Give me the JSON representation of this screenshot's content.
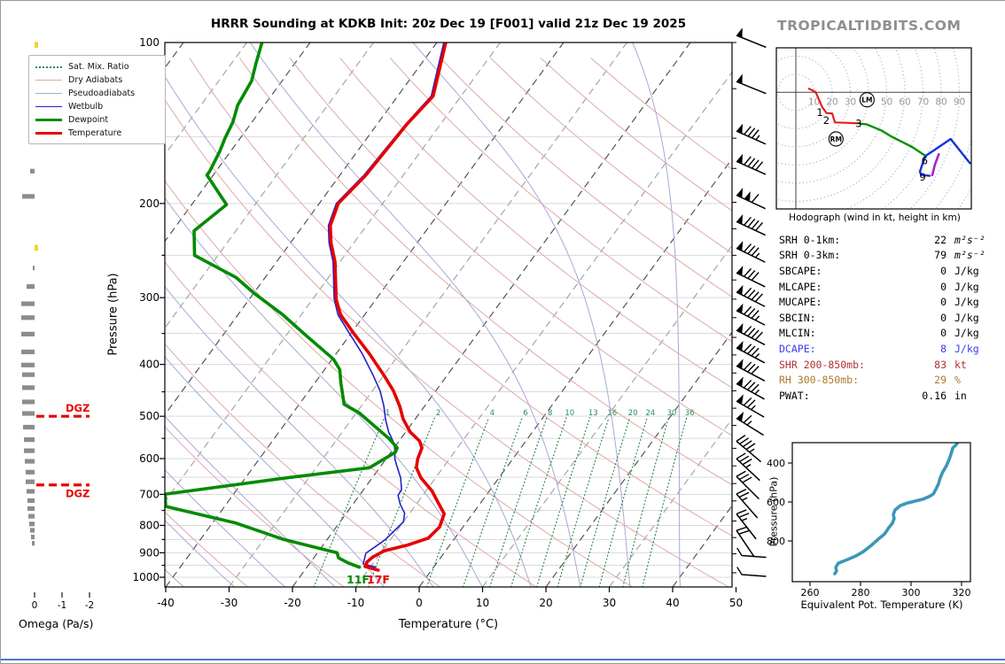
{
  "title": "HRRR Sounding at KDKB Init: 20z Dec 19 [F001] valid 21z Dec 19 2025",
  "watermark": "TROPICALTIDBITS.COM",
  "chart_data": {
    "type": "skew-t-log-p sounding",
    "skewt": {
      "xlabel": "Temperature (°C)",
      "ylabel": "Pressure (hPa)",
      "x_ticks": [
        -40,
        -30,
        -20,
        -10,
        0,
        10,
        20,
        30,
        40,
        50
      ],
      "p_labels": [
        100,
        200,
        300,
        400,
        500,
        600,
        700,
        800,
        900,
        1000
      ],
      "mixing_ratio_labels": [
        1,
        2,
        4,
        6,
        8,
        10,
        13,
        16,
        20,
        24,
        30,
        36
      ],
      "dgz_label": "DGZ",
      "dgz_levels_hpa": [
        500,
        672
      ],
      "surface_temp_label": "17F",
      "surface_dew_label": "11F",
      "temperature_curve": [
        [
          100,
          -58.6
        ],
        [
          126,
          -54.4
        ],
        [
          142,
          -55.3
        ],
        [
          177,
          -55.9
        ],
        [
          200,
          -57.0
        ],
        [
          220,
          -55.7
        ],
        [
          237,
          -53.6
        ],
        [
          257,
          -50.8
        ],
        [
          302,
          -46.3
        ],
        [
          323,
          -43.8
        ],
        [
          351,
          -39.4
        ],
        [
          381,
          -34.9
        ],
        [
          418,
          -30.1
        ],
        [
          448,
          -26.7
        ],
        [
          479,
          -23.9
        ],
        [
          506,
          -21.9
        ],
        [
          535,
          -19.3
        ],
        [
          556,
          -16.8
        ],
        [
          573,
          -15.6
        ],
        [
          601,
          -15.0
        ],
        [
          624,
          -14.2
        ],
        [
          652,
          -12.3
        ],
        [
          689,
          -9.1
        ],
        [
          715,
          -7.4
        ],
        [
          761,
          -4.5
        ],
        [
          805,
          -3.7
        ],
        [
          845,
          -4.2
        ],
        [
          870,
          -6.6
        ],
        [
          893,
          -9.7
        ],
        [
          917,
          -10.8
        ],
        [
          937,
          -11.1
        ],
        [
          955,
          -10.9
        ],
        [
          970,
          -8.4
        ]
      ],
      "wetbulb_curve": [
        [
          100,
          -58.9
        ],
        [
          126,
          -54.7
        ],
        [
          142,
          -55.5
        ],
        [
          177,
          -56.2
        ],
        [
          200,
          -57.3
        ],
        [
          220,
          -56.0
        ],
        [
          237,
          -53.9
        ],
        [
          257,
          -51.1
        ],
        [
          302,
          -46.6
        ],
        [
          323,
          -44.2
        ],
        [
          351,
          -40.1
        ],
        [
          381,
          -36.0
        ],
        [
          418,
          -31.8
        ],
        [
          448,
          -28.8
        ],
        [
          479,
          -26.4
        ],
        [
          506,
          -24.7
        ],
        [
          535,
          -22.7
        ],
        [
          556,
          -21.0
        ],
        [
          573,
          -19.9
        ],
        [
          601,
          -18.6
        ],
        [
          624,
          -17.2
        ],
        [
          652,
          -15.5
        ],
        [
          686,
          -14.0
        ],
        [
          703,
          -13.9
        ],
        [
          731,
          -12.5
        ],
        [
          759,
          -10.8
        ],
        [
          788,
          -10.0
        ],
        [
          818,
          -10.4
        ],
        [
          849,
          -10.8
        ],
        [
          874,
          -11.5
        ],
        [
          902,
          -12.3
        ],
        [
          928,
          -11.8
        ],
        [
          944,
          -11.5
        ],
        [
          957,
          -9.2
        ]
      ],
      "dewpoint_curve": [
        [
          100,
          -87.6
        ],
        [
          109,
          -86.2
        ],
        [
          118,
          -84.8
        ],
        [
          131,
          -84.2
        ],
        [
          141,
          -83.0
        ],
        [
          151,
          -82.4
        ],
        [
          160,
          -81.7
        ],
        [
          174,
          -81.0
        ],
        [
          177,
          -81.0
        ],
        [
          201,
          -74.5
        ],
        [
          225,
          -76.6
        ],
        [
          250,
          -73.7
        ],
        [
          275,
          -64.6
        ],
        [
          294,
          -60.0
        ],
        [
          323,
          -52.9
        ],
        [
          355,
          -46.5
        ],
        [
          391,
          -39.8
        ],
        [
          409,
          -37.6
        ],
        [
          433,
          -35.9
        ],
        [
          475,
          -32.9
        ],
        [
          493,
          -29.5
        ],
        [
          551,
          -21.8
        ],
        [
          573,
          -19.5
        ],
        [
          584,
          -19.3
        ],
        [
          624,
          -21.6
        ],
        [
          652,
          -33.6
        ],
        [
          699,
          -50.8
        ],
        [
          737,
          -49.3
        ],
        [
          792,
          -36.3
        ],
        [
          849,
          -27.0
        ],
        [
          900,
          -16.9
        ],
        [
          920,
          -16.1
        ],
        [
          940,
          -14.0
        ],
        [
          958,
          -11.7
        ]
      ],
      "colors": {
        "temperature": "#e60000",
        "dewpoint": "#008b00",
        "wetbulb": "#2222cc",
        "dry_adiabat": "#dfa8a8",
        "pseudoadiabat": "#a8a8d8",
        "mixing_ratio": "#2e8b57",
        "isotherm_major": "#4a4a4a",
        "isotherm_minor": "#a0a0a0",
        "gridline": "#d9d9d9",
        "dgz": "#e60000"
      }
    },
    "legend": [
      {
        "label": "Sat. Mix. Ratio",
        "style": "dotted",
        "color": "#2e8b57",
        "w": 1.3
      },
      {
        "label": "Dry Adiabats",
        "style": "solid",
        "color": "#dfa8a8",
        "w": 1.3
      },
      {
        "label": "Pseudoadiabats",
        "style": "solid",
        "color": "#a8a8d8",
        "w": 1.3
      },
      {
        "label": "Wetbulb",
        "style": "solid",
        "color": "#2222cc",
        "w": 1.7
      },
      {
        "label": "Dewpoint",
        "style": "solid",
        "color": "#008b00",
        "w": 3.6
      },
      {
        "label": "Temperature",
        "style": "solid",
        "color": "#e60000",
        "w": 3.6
      }
    ],
    "omega": {
      "label": "Omega (Pa/s)",
      "ticks": [
        0,
        -1,
        -2
      ],
      "bars": [
        [
          174,
          5
        ],
        [
          194,
          14
        ],
        [
          264,
          2
        ],
        [
          286,
          9
        ],
        [
          308,
          15
        ],
        [
          327,
          15
        ],
        [
          351,
          15
        ],
        [
          379,
          15
        ],
        [
          401,
          15
        ],
        [
          418,
          14
        ],
        [
          442,
          14
        ],
        [
          470,
          14
        ],
        [
          494,
          14
        ],
        [
          524,
          13
        ],
        [
          553,
          12
        ],
        [
          580,
          12
        ],
        [
          607,
          11
        ],
        [
          636,
          10
        ],
        [
          663,
          10
        ],
        [
          691,
          9
        ],
        [
          719,
          8
        ],
        [
          744,
          8
        ],
        [
          769,
          7
        ],
        [
          795,
          6
        ],
        [
          817,
          5
        ],
        [
          841,
          4
        ],
        [
          864,
          3
        ]
      ],
      "bars_up": [
        [
          101,
          4
        ],
        [
          126,
          4
        ],
        [
          242,
          4
        ]
      ],
      "bar_color": "#8c8c8c",
      "up_color": "#f5d327"
    },
    "barbs": {
      "color": "#000000",
      "levels": [
        {
          "p": 100,
          "pen": 1,
          "full": 0,
          "half": 0,
          "ang": 22
        },
        {
          "p": 122,
          "pen": 1,
          "full": 0,
          "half": 0,
          "ang": 22
        },
        {
          "p": 151,
          "pen": 1,
          "full": 3,
          "half": 1,
          "ang": 24
        },
        {
          "p": 172,
          "pen": 1,
          "full": 4,
          "half": 0,
          "ang": 24
        },
        {
          "p": 199,
          "pen": 2,
          "full": 1,
          "half": 0,
          "ang": 25
        },
        {
          "p": 223,
          "pen": 1,
          "full": 4,
          "half": 0,
          "ang": 25
        },
        {
          "p": 250,
          "pen": 1,
          "full": 3,
          "half": 1,
          "ang": 26
        },
        {
          "p": 278,
          "pen": 1,
          "full": 3,
          "half": 0,
          "ang": 26
        },
        {
          "p": 302,
          "pen": 1,
          "full": 4,
          "half": 0,
          "ang": 27
        },
        {
          "p": 327,
          "pen": 1,
          "full": 3,
          "half": 1,
          "ang": 27
        },
        {
          "p": 356,
          "pen": 1,
          "full": 4,
          "half": 0,
          "ang": 27
        },
        {
          "p": 384,
          "pen": 1,
          "full": 3,
          "half": 1,
          "ang": 28
        },
        {
          "p": 415,
          "pen": 1,
          "full": 3,
          "half": 0,
          "ang": 28
        },
        {
          "p": 448,
          "pen": 1,
          "full": 3,
          "half": 1,
          "ang": 29
        },
        {
          "p": 483,
          "pen": 1,
          "full": 2,
          "half": 1,
          "ang": 30
        },
        {
          "p": 520,
          "pen": 1,
          "full": 1,
          "half": 1,
          "ang": 32
        },
        {
          "p": 574,
          "pen": 0,
          "full": 4,
          "half": 1,
          "ang": 40
        },
        {
          "p": 619,
          "pen": 0,
          "full": 3,
          "half": 1,
          "ang": 43
        },
        {
          "p": 668,
          "pen": 0,
          "full": 3,
          "half": 0,
          "ang": 45
        },
        {
          "p": 720,
          "pen": 0,
          "full": 2,
          "half": 1,
          "ang": 49
        },
        {
          "p": 785,
          "pen": 0,
          "full": 2,
          "half": 1,
          "ang": 52
        },
        {
          "p": 843,
          "pen": 0,
          "full": 2,
          "half": 0,
          "ang": 56
        },
        {
          "p": 904,
          "light": true
        },
        {
          "p": 981,
          "light": true
        }
      ]
    },
    "hodograph": {
      "caption": "Hodograph (wind in kt, height in km)",
      "ring_interval_kt": 10,
      "ring_labels": [
        10,
        20,
        30,
        40,
        50,
        60,
        70,
        80,
        90
      ],
      "segments": [
        {
          "color": "#dd2222",
          "w": 2.2,
          "pts": [
            [
              7.2,
              2.0
            ],
            [
              10.9,
              0.2
            ],
            [
              12.8,
              -4.1
            ],
            [
              14.5,
              -8.1
            ],
            [
              16.9,
              -11.4
            ],
            [
              20.0,
              -11.6
            ],
            [
              21.5,
              -16.6
            ],
            [
              27.5,
              -16.8
            ],
            [
              34.8,
              -17.1
            ]
          ]
        },
        {
          "color": "#0a9000",
          "w": 2.4,
          "pts": [
            [
              34.8,
              -17.1
            ],
            [
              38.9,
              -17.6
            ],
            [
              47.0,
              -21.0
            ],
            [
              52.7,
              -24.4
            ],
            [
              64.0,
              -30.1
            ],
            [
              71.4,
              -35.0
            ]
          ]
        },
        {
          "color": "#1133dd",
          "w": 2.4,
          "pts": [
            [
              71.4,
              -35.0
            ],
            [
              69.5,
              -40.0
            ],
            [
              68.3,
              -43.8
            ],
            [
              69.0,
              -45.5
            ],
            [
              73.7,
              -46.0
            ]
          ]
        },
        {
          "color": "#1133dd",
          "w": 2.4,
          "pts": [
            [
              71.4,
              -35.0
            ],
            [
              85.2,
              -25.7
            ],
            [
              95.8,
              -39.0
            ]
          ]
        },
        {
          "color": "#aa22cc",
          "w": 2.6,
          "pts": [
            [
              75.1,
              -45.6
            ],
            [
              76.5,
              -40.0
            ],
            [
              78.7,
              -34.1
            ]
          ]
        }
      ],
      "height_labels": [
        {
          "t": "1",
          "u": 15.3,
          "v": -10.6
        },
        {
          "t": "2",
          "u": 18.9,
          "v": -15.0
        },
        {
          "t": "3",
          "u": 36.7,
          "v": -16.6
        },
        {
          "t": "6",
          "u": 73.0,
          "v": -37.1
        },
        {
          "t": "9",
          "u": 71.9,
          "v": -46.3
        }
      ],
      "markers": [
        {
          "t": "LM",
          "u": 39.2,
          "v": -4.1
        },
        {
          "t": "RM",
          "u": 22.1,
          "v": -25.7
        }
      ]
    },
    "stats": [
      {
        "label": "SRH 0-1km:",
        "value": "22",
        "unit": "m²s⁻²",
        "color": "#000000",
        "italic_unit": true
      },
      {
        "label": "SRH 0-3km:",
        "value": "79",
        "unit": "m²s⁻²",
        "color": "#000000",
        "italic_unit": true
      },
      {
        "label": "SBCAPE:",
        "value": "0",
        "unit": "J/kg",
        "color": "#000000"
      },
      {
        "label": "MLCAPE:",
        "value": "0",
        "unit": "J/kg",
        "color": "#000000"
      },
      {
        "label": "MUCAPE:",
        "value": "0",
        "unit": "J/kg",
        "color": "#000000"
      },
      {
        "label": "SBCIN:",
        "value": "0",
        "unit": "J/kg",
        "color": "#000000"
      },
      {
        "label": "MLCIN:",
        "value": "0",
        "unit": "J/kg",
        "color": "#000000"
      },
      {
        "label": "DCAPE:",
        "value": "8",
        "unit": "J/kg",
        "color": "#3c3cee"
      },
      {
        "label": "SHR 200-850mb:",
        "value": "83",
        "unit": "kt",
        "color": "#b03030"
      },
      {
        "label": "RH 300-850mb:",
        "value": "29",
        "unit": "%",
        "color": "#ad7a2e"
      },
      {
        "label": "PWAT:",
        "value": "0.16",
        "unit": "in",
        "color": "#000000"
      }
    ],
    "thetae": {
      "xlabel": "Equivalent Pot. Temperature (K)",
      "ylabel": "Pressure (hPa)",
      "x_ticks": [
        260,
        280,
        300,
        320
      ],
      "y_ticks": [
        400,
        600,
        800
      ],
      "color": "#3b97b7",
      "curve": [
        [
          269.8,
          968
        ],
        [
          270.5,
          955
        ],
        [
          270.2,
          936
        ],
        [
          271.2,
          914
        ],
        [
          274.0,
          900
        ],
        [
          278.2,
          877
        ],
        [
          281.1,
          855
        ],
        [
          284.2,
          823
        ],
        [
          287.0,
          791
        ],
        [
          289.5,
          764
        ],
        [
          291.2,
          732
        ],
        [
          292.6,
          709
        ],
        [
          293.3,
          686
        ],
        [
          293.0,
          664
        ],
        [
          293.7,
          641
        ],
        [
          295.8,
          618
        ],
        [
          298.6,
          605
        ],
        [
          301.8,
          595
        ],
        [
          304.6,
          586
        ],
        [
          307.0,
          573
        ],
        [
          308.8,
          559
        ],
        [
          309.8,
          536
        ],
        [
          310.9,
          505
        ],
        [
          311.6,
          473
        ],
        [
          312.6,
          445
        ],
        [
          314.0,
          414
        ],
        [
          315.1,
          382
        ],
        [
          315.8,
          355
        ],
        [
          316.5,
          323
        ],
        [
          317.9,
          305
        ],
        [
          318.2,
          300
        ]
      ]
    }
  }
}
